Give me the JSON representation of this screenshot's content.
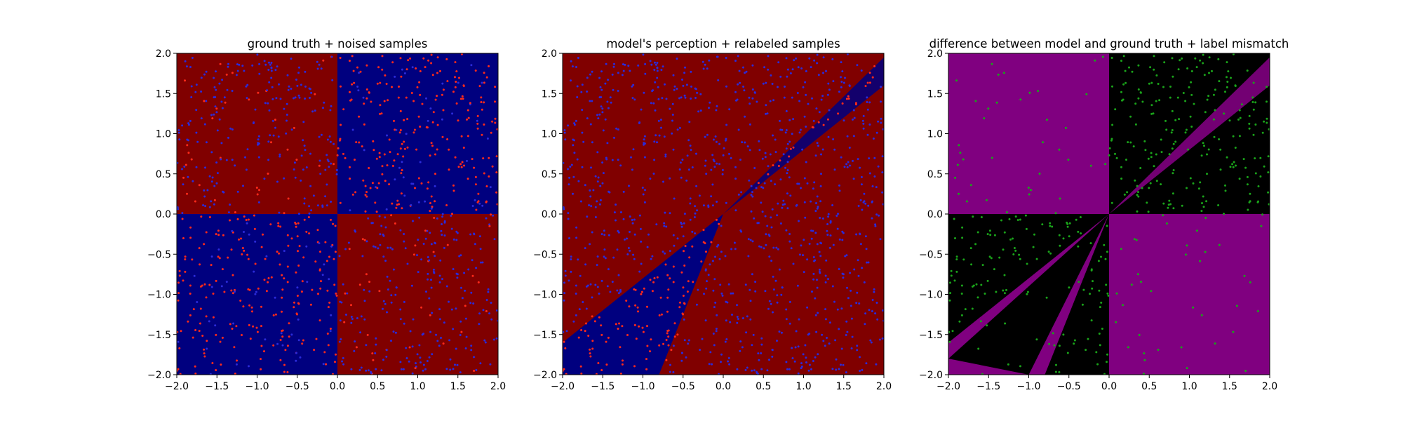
{
  "colors": {
    "red_region": "#800000",
    "blue_region": "#00007f",
    "red_point": "#ff2a1a",
    "blue_point": "#2b2bd9",
    "mismatch_region": "#800080",
    "match_region": "#000000",
    "mismatch_point": "#1aa31a"
  },
  "chart_data": [
    {
      "type": "heatmap",
      "title": "ground truth + noised samples",
      "xlim": [
        -2.0,
        2.0
      ],
      "ylim": [
        -2.0,
        2.0
      ],
      "x_ticks": [
        "−2.0",
        "−1.5",
        "−1.0",
        "−0.5",
        "0.0",
        "0.5",
        "1.0",
        "1.5",
        "2.0"
      ],
      "y_ticks": [
        "−2.0",
        "−1.5",
        "−1.0",
        "−0.5",
        "0.0",
        "0.5",
        "1.0",
        "1.5",
        "2.0"
      ],
      "field": "checkerboard: red where x*y<0, blue where x*y>0",
      "points": "~1000 uniform samples in [-2,2]^2; colour = ground truth class opposite to background with noise",
      "grid": false
    },
    {
      "type": "heatmap",
      "title": "model's perception + relabeled samples",
      "xlim": [
        -2.0,
        2.0
      ],
      "ylim": [
        -2.0,
        2.0
      ],
      "x_ticks": [
        "−2.0",
        "−1.5",
        "−1.0",
        "−0.5",
        "0.0",
        "0.5",
        "1.0",
        "1.5",
        "2.0"
      ],
      "y_ticks": [
        "−2.0",
        "−1.5",
        "−1.0",
        "−0.5",
        "0.0",
        "0.5",
        "1.0",
        "1.5",
        "2.0"
      ],
      "field": "blue wedge between lines y=0.9x (approx, through (2,1.9)) and y=2.4x (approx) in lower-left and upper-right, red elsewhere",
      "points": "samples relabeled by model",
      "grid": false
    },
    {
      "type": "heatmap",
      "title": "difference between model and ground truth + label mismatch",
      "xlim": [
        -2.0,
        2.0
      ],
      "ylim": [
        -2.0,
        2.0
      ],
      "x_ticks": [
        "−2.0",
        "−1.5",
        "−1.0",
        "−0.5",
        "0.0",
        "0.5",
        "1.0",
        "1.5",
        "2.0"
      ],
      "y_ticks": [
        "−2.0",
        "−1.5",
        "−1.0",
        "−0.5",
        "0.0",
        "0.5",
        "1.0",
        "1.5",
        "2.0"
      ],
      "field": "purple where model disagrees with ground truth, black where agrees",
      "points": "green points where labels mismatch",
      "grid": false
    }
  ]
}
